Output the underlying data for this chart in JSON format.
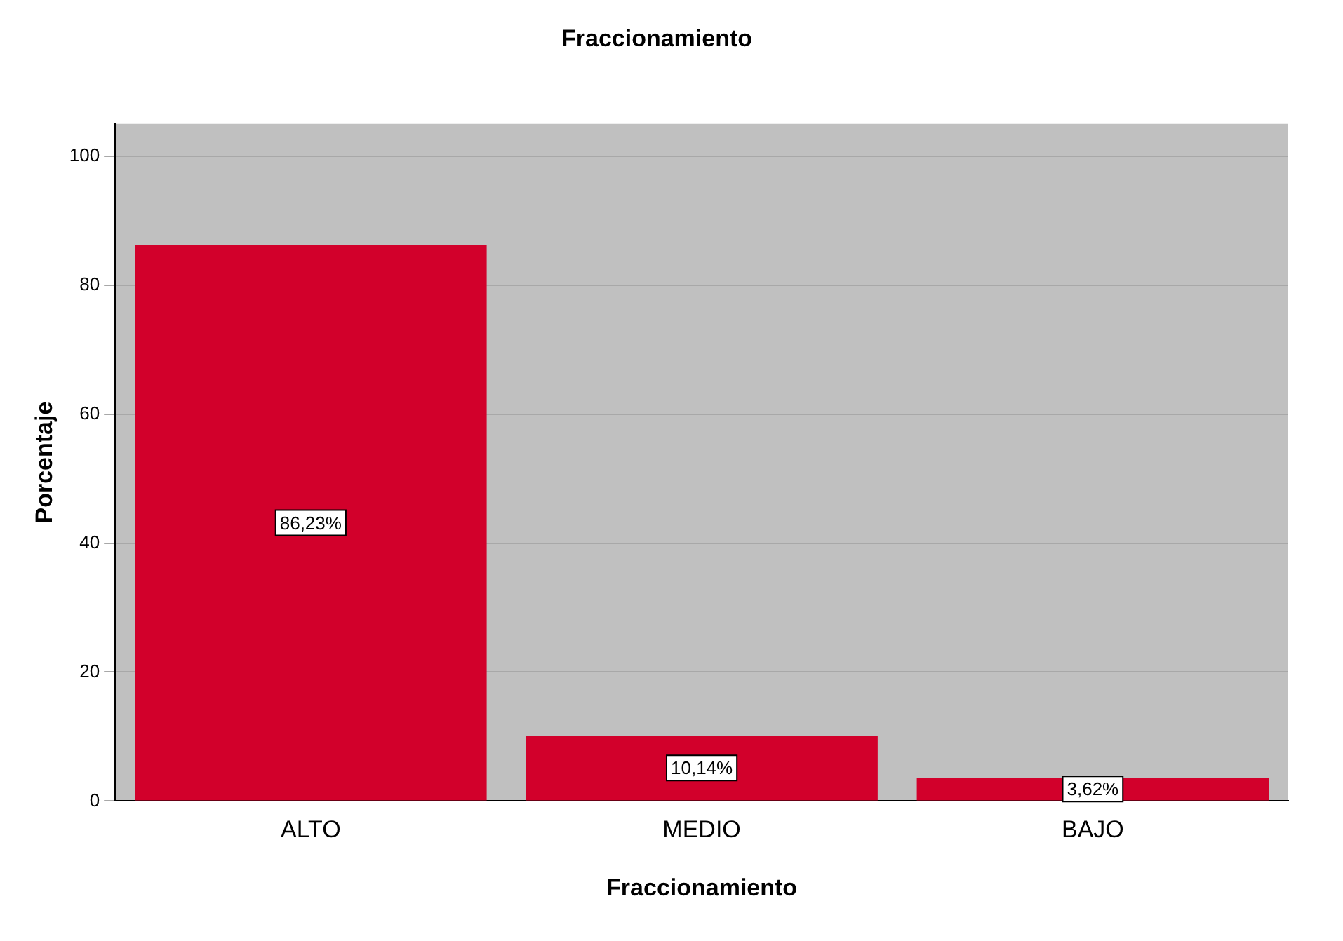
{
  "chart_data": {
    "type": "bar",
    "title": "Fraccionamiento",
    "xlabel": "Fraccionamiento",
    "ylabel": "Porcentaje",
    "categories": [
      "ALTO",
      "MEDIO",
      "BAJO"
    ],
    "values": [
      86.23,
      10.14,
      3.62
    ],
    "value_labels": [
      "86,23%",
      "10,14%",
      "3,62%"
    ],
    "color": "#d2002b",
    "ylim": [
      0,
      105
    ],
    "yticks": [
      0,
      20,
      40,
      60,
      80,
      100
    ],
    "grid": "y"
  }
}
